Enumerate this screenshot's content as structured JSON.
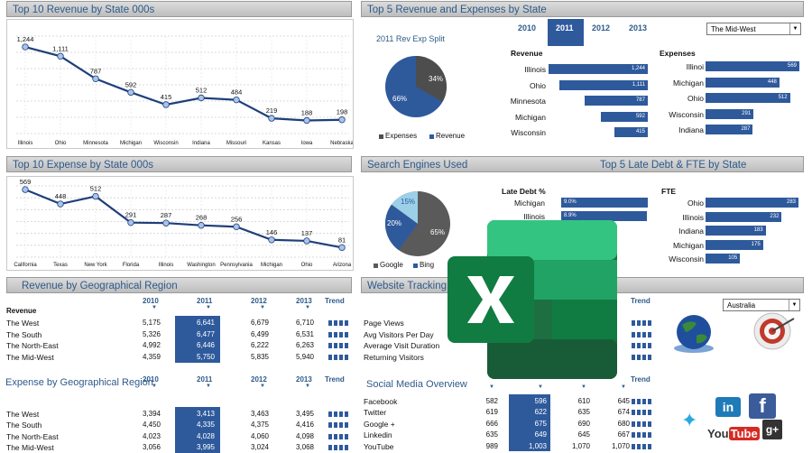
{
  "panels": {
    "rev_state_title": "Top 10 Revenue by State 000s",
    "top5_title": "Top 5 Revenue and Expenses by State",
    "exp_state_title": "Top 10 Expense by State 000s",
    "search_title": "Search Engines Used",
    "late_debt_title": "Top 5 Late Debt & FTE by State",
    "rev_geo_title": "Revenue by Geographical Region",
    "website_title": "Website Tracking C",
    "exp_geo_title": "Expense by Geographical Region",
    "social_title": "Social Media Overview"
  },
  "top5": {
    "years": [
      "2010",
      "2011",
      "2012",
      "2013"
    ],
    "selected_year": "2011",
    "region_select": "The Mid-West",
    "pie_title": "2011 Rev Exp Split",
    "pie_labels": [
      "34%",
      "66%"
    ],
    "legend": [
      "Expenses",
      "Revenue"
    ],
    "revenue_header": "Revenue",
    "expenses_header": "Expenses",
    "revenue": [
      {
        "state": "Illinois",
        "value": "1,244"
      },
      {
        "state": "Ohio",
        "value": "1,111"
      },
      {
        "state": "Minnesota",
        "value": "787"
      },
      {
        "state": "Michigan",
        "value": "592"
      },
      {
        "state": "Wisconsin",
        "value": "415"
      }
    ],
    "expenses": [
      {
        "state": "Illinoi",
        "value": "569"
      },
      {
        "state": "Michigan",
        "value": "448"
      },
      {
        "state": "Ohio",
        "value": "512"
      },
      {
        "state": "Wisconsin",
        "value": "291"
      },
      {
        "state": "Indiana",
        "value": "287"
      }
    ]
  },
  "search": {
    "pie_labels": [
      "15%",
      "20%",
      "65%"
    ],
    "legend": [
      "Google",
      "Bing"
    ],
    "late_header": "Late Debt %",
    "late": [
      {
        "state": "Michigan",
        "value": "9.0%"
      },
      {
        "state": "Illinois",
        "value": "8.9%"
      }
    ],
    "fte_header": "FTE",
    "fte": [
      {
        "state": "Ohio",
        "value": "283"
      },
      {
        "state": "Illinois",
        "value": "232"
      },
      {
        "state": "Indiana",
        "value": "183"
      },
      {
        "state": "Michigan",
        "value": "175"
      },
      {
        "state": "Wisconsin",
        "value": "105"
      }
    ]
  },
  "rev_geo": {
    "years": [
      "2010",
      "2011",
      "2012",
      "2013"
    ],
    "trend": "Trend",
    "section": "Revenue",
    "rows": [
      {
        "name": "The West",
        "v": [
          "5,175",
          "6,641",
          "6,679",
          "6,710"
        ]
      },
      {
        "name": "The South",
        "v": [
          "5,326",
          "6,477",
          "6,499",
          "6,531"
        ]
      },
      {
        "name": "The North-East",
        "v": [
          "4,992",
          "6,446",
          "6,222",
          "6,263"
        ]
      },
      {
        "name": "The Mid-West",
        "v": [
          "4,359",
          "5,750",
          "5,835",
          "5,940"
        ]
      }
    ]
  },
  "website": {
    "trend": "Trend",
    "country": "Australia",
    "rows": [
      "Page Views",
      "Avg Visitors Per Day",
      "Average Visit Duration",
      "Returning Visitors"
    ]
  },
  "exp_geo": {
    "years": [
      "2010",
      "2011",
      "2012",
      "2013"
    ],
    "trend": "Trend",
    "rows": [
      {
        "name": "The West",
        "v": [
          "3,394",
          "3,413",
          "3,463",
          "3,495"
        ]
      },
      {
        "name": "The South",
        "v": [
          "4,450",
          "4,335",
          "4,375",
          "4,416"
        ]
      },
      {
        "name": "The North-East",
        "v": [
          "4,023",
          "4,028",
          "4,060",
          "4,098"
        ]
      },
      {
        "name": "The Mid-West",
        "v": [
          "3,056",
          "3,995",
          "3,024",
          "3,068"
        ]
      }
    ]
  },
  "social": {
    "trend": "Trend",
    "rows": [
      {
        "name": "Facebook",
        "v": [
          "582",
          "596",
          "610",
          "645"
        ]
      },
      {
        "name": "Twitter",
        "v": [
          "619",
          "622",
          "635",
          "674"
        ]
      },
      {
        "name": "Google +",
        "v": [
          "666",
          "675",
          "690",
          "680"
        ]
      },
      {
        "name": "Linkedin",
        "v": [
          "635",
          "649",
          "645",
          "667"
        ]
      },
      {
        "name": "YouTube",
        "v": [
          "989",
          "1,003",
          "1,070",
          "1,070"
        ]
      }
    ],
    "icons": [
      "in",
      "f",
      "You",
      "Tube",
      "g+"
    ]
  },
  "chart_data": [
    {
      "type": "line",
      "title": "Top 10 Revenue by State 000s",
      "categories": [
        "Illinois",
        "Ohio",
        "Minnesota",
        "Michigan",
        "Wisconsin",
        "Indiana",
        "Missouri",
        "Kansas",
        "Iowa",
        "Nebraska"
      ],
      "values": [
        1244,
        1111,
        787,
        592,
        415,
        512,
        484,
        219,
        188,
        198
      ],
      "labels": [
        "1,244",
        "1,111",
        "787",
        "592",
        "415",
        "512",
        "484",
        "219",
        "188",
        "198"
      ],
      "ylim": [
        0,
        1400
      ],
      "grid": true
    },
    {
      "type": "line",
      "title": "Top 10 Expense by State 000s",
      "categories": [
        "California",
        "Texas",
        "New York",
        "Florida",
        "Illinois",
        "Washington",
        "Pennsylvania",
        "Michigan",
        "Ohio",
        "Arizona"
      ],
      "values": [
        569,
        448,
        512,
        291,
        287,
        268,
        256,
        146,
        137,
        81
      ],
      "labels": [
        "569",
        "448",
        "512",
        "291",
        "287",
        "268",
        "256",
        "146",
        "137",
        "81"
      ],
      "ylim": [
        0,
        600
      ],
      "grid": true
    }
  ]
}
